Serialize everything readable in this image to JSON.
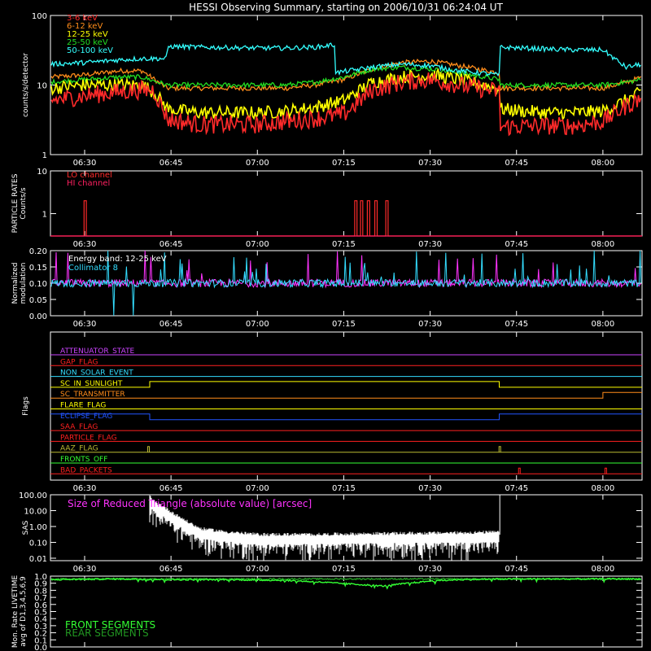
{
  "title": "HESSI Observing Summary, starting on 2006/10/31 06:24:04 UT",
  "time_axis": {
    "start_minutes": 384.0667,
    "end_minutes": 486.8,
    "tick_labels": [
      "06:30",
      "06:45",
      "07:00",
      "07:15",
      "07:30",
      "07:45",
      "08:00"
    ],
    "tick_minutes": [
      390,
      405,
      420,
      435,
      450,
      465,
      480
    ]
  },
  "colors": {
    "c3_6": "#ff2a2a",
    "c6_12": "#ff8c1a",
    "c12_25": "#ffff00",
    "c25_50": "#22dd22",
    "c50_100": "#33ffff",
    "magenta": "#ff33ff",
    "cyan": "#33ddff",
    "white": "#ffffff",
    "green": "#33ff33",
    "darkgreen": "#229922",
    "red": "#ff2020",
    "blue": "#2255ff",
    "purple": "#cc44ff",
    "orange": "#ff8c1a",
    "yellow": "#ffff00",
    "olive": "#bbbb33"
  },
  "chart_data": [
    {
      "type": "line",
      "id": "rates",
      "ylabel": "counts/s/detector",
      "yscale": "log",
      "ylim": [
        1,
        100
      ],
      "ytick_labels": [
        "1",
        "10",
        "100"
      ],
      "ytick_values": [
        1,
        10,
        100
      ],
      "series": [
        {
          "name": "3-6 keV",
          "color": "#ff2a2a",
          "x": [
            384.1,
            390,
            396,
            400,
            402,
            404.5,
            410,
            420,
            425,
            430,
            435,
            440,
            445,
            450,
            455,
            462,
            462.2,
            470,
            475,
            480,
            484,
            486.8
          ],
          "y": [
            6,
            7,
            8,
            8.5,
            8.5,
            3.2,
            2.7,
            2.7,
            3.0,
            3.3,
            3.8,
            8.5,
            11,
            12,
            10,
            8,
            2.5,
            2.6,
            2.6,
            3.0,
            5,
            6.5
          ]
        },
        {
          "name": "6-12 keV",
          "color": "#ff8c1a",
          "x": [
            384.1,
            390,
            396,
            400,
            404.3,
            410,
            420,
            425,
            430,
            435,
            440,
            445,
            450,
            455,
            462,
            462.2,
            470,
            475,
            480,
            484,
            486.8
          ],
          "y": [
            13,
            14,
            16,
            16,
            9,
            9,
            9,
            9,
            10,
            12,
            17,
            21,
            22,
            19,
            15,
            9,
            9,
            9,
            9,
            11,
            13
          ]
        },
        {
          "name": "12-25 keV",
          "color": "#ffff00",
          "x": [
            384.1,
            390,
            396,
            400,
            402,
            404.5,
            410,
            420,
            425,
            430,
            435,
            440,
            445,
            450,
            455,
            462,
            462.2,
            470,
            475,
            480,
            484,
            486.8
          ],
          "y": [
            9,
            10,
            10,
            10,
            8,
            4.5,
            4.0,
            4.0,
            4.2,
            4.8,
            6,
            11,
            13,
            14,
            12,
            9,
            4.5,
            4.0,
            4.0,
            4.2,
            6,
            8
          ]
        },
        {
          "name": "25-50 keV",
          "color": "#22dd22",
          "x": [
            384.1,
            390,
            396,
            400,
            404.3,
            410,
            420,
            425,
            430,
            435,
            440,
            445,
            450,
            455,
            462,
            462.2,
            470,
            475,
            480,
            484,
            486.8
          ],
          "y": [
            11,
            12,
            13,
            13,
            10,
            10,
            10,
            10,
            11,
            13,
            17,
            18,
            17,
            15,
            12,
            10,
            10,
            10,
            10,
            11,
            12
          ]
        },
        {
          "name": "50-100 keV",
          "color": "#33ffff",
          "x": [
            384.1,
            390,
            396,
            400,
            404.3,
            404.4,
            410,
            420,
            425,
            430,
            433.5,
            433.6,
            440,
            445,
            450,
            455,
            462,
            462.1,
            470,
            475,
            480,
            484,
            486.8
          ],
          "y": [
            20,
            21,
            23,
            24,
            24,
            36,
            35,
            34,
            34,
            35,
            38,
            15,
            18,
            20,
            19,
            16,
            14,
            35,
            33,
            32,
            32,
            18,
            20
          ]
        }
      ]
    },
    {
      "type": "line",
      "id": "particle",
      "ylabel": "PARTICLE RATES Counts/s",
      "yscale": "log",
      "ylim": [
        0.3,
        10
      ],
      "ytick_labels": [
        "1",
        "10"
      ],
      "ytick_values": [
        1,
        10
      ],
      "series": [
        {
          "name": "LO channel",
          "color": "#ff2a2a",
          "x": [
            384.1,
            389.9,
            389.9,
            390.3,
            390.3,
            436.9,
            436.9,
            437.3,
            437.3,
            437.9,
            437.9,
            438.3,
            438.3,
            439.1,
            439.1,
            439.5,
            439.5,
            440.4,
            440.4,
            440.8,
            440.8,
            442.3,
            442.3,
            442.7,
            442.7,
            486.8
          ],
          "y": [
            0.3,
            0.3,
            2,
            2,
            0.3,
            0.3,
            2,
            2,
            0.3,
            0.3,
            2,
            2,
            0.3,
            0.3,
            2,
            2,
            0.3,
            0.3,
            2,
            2,
            0.3,
            0.3,
            2,
            2,
            0.3,
            0.3
          ]
        },
        {
          "name": "HI channel",
          "color": "#ff2060",
          "x": [
            384.1,
            486.8
          ],
          "y": [
            0.3,
            0.3
          ]
        }
      ]
    },
    {
      "type": "line",
      "id": "modulation",
      "ylabel": "Normalized modulation",
      "ylim": [
        0,
        0.2
      ],
      "ytick_labels": [
        "0.00",
        "0.05",
        "0.10",
        "0.15",
        "0.20"
      ],
      "ytick_values": [
        0,
        0.05,
        0.1,
        0.15,
        0.2
      ],
      "annotations": [
        "Energy band: 12-25 keV",
        "Collimator 8"
      ],
      "series": [
        {
          "name": "Energy band: 12-25 keV",
          "color": "#ff33ff",
          "baseline": 0.1,
          "spread": 0.012
        },
        {
          "name": "Collimator 8",
          "color": "#33ddff",
          "baseline": 0.1,
          "spread": 0.012,
          "dips_to_zero_minutes": [
            [
              394.9,
              395.2
            ],
            [
              398.3,
              398.6
            ]
          ]
        }
      ]
    },
    {
      "type": "line",
      "id": "flags",
      "ylabel": "Flags",
      "flags": [
        {
          "name": "ATTENUATOR_STATE",
          "color": "#cc44ff",
          "steps": []
        },
        {
          "name": "GAP_FLAG",
          "color": "#ff2020",
          "steps": []
        },
        {
          "name": "NON_SOLAR_EVENT",
          "color": "#33ddff",
          "steps": []
        },
        {
          "name": "SC_IN_SUNLIGHT",
          "color": "#ffff00",
          "steps": [
            [
              384.1,
              0
            ],
            [
              401.3,
              1
            ],
            [
              462.0,
              0
            ]
          ]
        },
        {
          "name": "SC_TRANSMITTER",
          "color": "#ff8c1a",
          "steps": [
            [
              384.1,
              0
            ],
            [
              480.0,
              1
            ]
          ]
        },
        {
          "name": "FLARE_FLAG",
          "color": "#ffff00",
          "steps": []
        },
        {
          "name": "ECLIPSE_FLAG",
          "color": "#2255ff",
          "steps": [
            [
              384.1,
              1
            ],
            [
              401.3,
              0
            ],
            [
              462.0,
              1
            ]
          ]
        },
        {
          "name": "SAA_FLAG",
          "color": "#ff2020",
          "steps": []
        },
        {
          "name": "PARTICLE_FLAG",
          "color": "#ff2020",
          "steps": []
        },
        {
          "name": "AAZ_FLAG",
          "color": "#bbbb33",
          "spikes": [
            401.1,
            462.1
          ]
        },
        {
          "name": "FRONTS_OFF",
          "color": "#33ff33",
          "steps": []
        },
        {
          "name": "BAD_PACKETS",
          "color": "#ff2020",
          "spikes": [
            465.5,
            480.5
          ]
        }
      ]
    },
    {
      "type": "line",
      "id": "sas",
      "ylabel": "SAS",
      "yscale": "log",
      "ylim": [
        0.007,
        100
      ],
      "ytick_labels": [
        "0.01",
        "0.10",
        "1.00",
        "10.00",
        "100.00"
      ],
      "ytick_values": [
        0.01,
        0.1,
        1,
        10,
        100
      ],
      "annotations": [
        "Size of Reduced Triangle (absolute value) [arcsec]"
      ],
      "series": [
        {
          "name": "Size of Reduced Triangle (absolute value) [arcsec]",
          "color": "#ffffff",
          "x": [
            401.3,
            402,
            404,
            406,
            408,
            410,
            415,
            420,
            430,
            440,
            450,
            455,
            462.0,
            462.1
          ],
          "y": [
            60,
            30,
            12,
            4,
            1.5,
            0.6,
            0.35,
            0.25,
            0.25,
            0.28,
            0.3,
            0.32,
            0.35,
            100
          ]
        }
      ]
    },
    {
      "type": "line",
      "id": "livetime",
      "ylabel": "Mon. Rate LIVETIME avg of D1,3,4,5,6,9",
      "ylim": [
        0,
        1.0
      ],
      "ytick_labels": [
        "0.0",
        "0.1",
        "0.2",
        "0.3",
        "0.4",
        "0.5",
        "0.6",
        "0.7",
        "0.8",
        "0.9",
        "1.0"
      ],
      "ytick_values": [
        0,
        0.1,
        0.2,
        0.3,
        0.4,
        0.5,
        0.6,
        0.7,
        0.8,
        0.9,
        1.0
      ],
      "series": [
        {
          "name": "FRONT SEGMENTS",
          "color": "#33ff33",
          "x": [
            384.1,
            395,
            405,
            415,
            425,
            430,
            436,
            440,
            442,
            445,
            450,
            455,
            465,
            475,
            486.8
          ],
          "y": [
            0.95,
            0.96,
            0.95,
            0.95,
            0.94,
            0.92,
            0.89,
            0.87,
            0.86,
            0.89,
            0.93,
            0.95,
            0.96,
            0.96,
            0.96
          ]
        },
        {
          "name": "REAR SEGMENTS",
          "color": "#229922",
          "x": [
            384.1,
            486.8
          ],
          "y": [
            0.96,
            0.96
          ]
        }
      ]
    }
  ]
}
